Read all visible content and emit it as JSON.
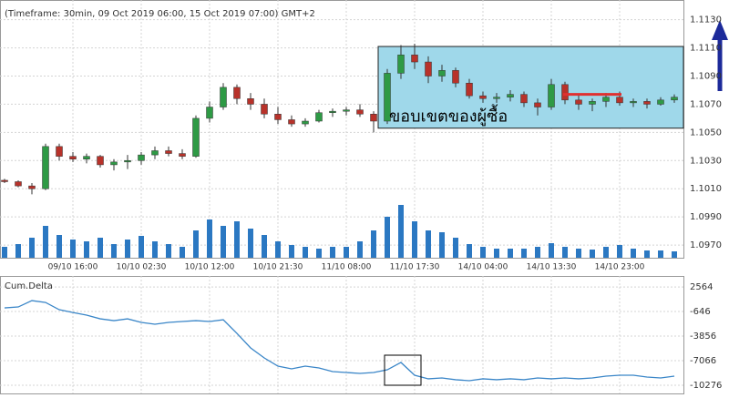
{
  "chart_data": {
    "type": "candlestick",
    "title": "(Timeframe: 30min, 09 Oct 2019 06:00, 15 Oct 2019 07:00) GMT+2",
    "categories": [
      null,
      null,
      null,
      null,
      null,
      "09/10 16:00",
      null,
      null,
      null,
      null,
      "10/10 02:30",
      null,
      null,
      null,
      null,
      "10/10 12:00",
      null,
      null,
      null,
      null,
      "10/10 21:30",
      null,
      null,
      null,
      null,
      "11/10 08:00",
      null,
      null,
      null,
      null,
      "11/10 17:30",
      null,
      null,
      null,
      null,
      "14/10 04:00",
      null,
      null,
      null,
      null,
      "14/10 13:30",
      null,
      null,
      null,
      null,
      "14/10 23:00",
      null,
      null,
      null,
      null
    ],
    "open": [
      1.1016,
      1.1015,
      1.1012,
      1.101,
      1.104,
      1.1033,
      1.1031,
      1.1033,
      1.1027,
      1.1029,
      1.103,
      1.1034,
      1.1037,
      1.1035,
      1.1033,
      1.106,
      1.1068,
      1.1082,
      1.1074,
      1.107,
      1.1063,
      1.1059,
      1.1056,
      1.1058,
      1.1064,
      1.1065,
      1.1066,
      1.1063,
      1.1058,
      1.1092,
      1.1105,
      1.11,
      1.109,
      1.1094,
      1.1085,
      1.1076,
      1.1074,
      1.1075,
      1.1077,
      1.1071,
      1.1068,
      1.1084,
      1.1073,
      1.107,
      1.1072,
      1.1075,
      1.1071,
      1.1072,
      1.107,
      1.1073
    ],
    "high": [
      1.1017,
      1.1016,
      1.1014,
      1.1042,
      1.1042,
      1.1036,
      1.1035,
      1.1034,
      1.1031,
      1.1034,
      1.1036,
      1.104,
      1.104,
      1.1038,
      1.1062,
      1.1072,
      1.1085,
      1.1084,
      1.1078,
      1.1074,
      1.1068,
      1.1062,
      1.106,
      1.1066,
      1.1067,
      1.1068,
      1.107,
      1.1065,
      1.1095,
      1.1112,
      1.1113,
      1.1104,
      1.1098,
      1.1096,
      1.1088,
      1.1079,
      1.1078,
      1.108,
      1.1079,
      1.1074,
      1.1088,
      1.1086,
      1.1077,
      1.1074,
      1.1078,
      1.1079,
      1.1074,
      1.1074,
      1.1075,
      1.1077
    ],
    "low": [
      1.1014,
      1.1011,
      1.1006,
      1.1009,
      1.103,
      1.1029,
      1.1028,
      1.1025,
      1.1023,
      1.1024,
      1.1027,
      1.1031,
      1.1033,
      1.1031,
      1.1032,
      1.1057,
      1.1066,
      1.107,
      1.1066,
      1.106,
      1.1056,
      1.1054,
      1.1054,
      1.1057,
      1.1061,
      1.1062,
      1.1061,
      1.105,
      1.1056,
      1.1088,
      1.1095,
      1.1085,
      1.1086,
      1.1082,
      1.1074,
      1.1071,
      1.1071,
      1.1072,
      1.1068,
      1.1062,
      1.1066,
      1.107,
      1.1066,
      1.1065,
      1.1068,
      1.1069,
      1.1068,
      1.1067,
      1.1069,
      1.1071
    ],
    "close": [
      1.1015,
      1.1012,
      1.101,
      1.104,
      1.1033,
      1.1031,
      1.1033,
      1.1027,
      1.1029,
      1.103,
      1.1034,
      1.1037,
      1.1035,
      1.1033,
      1.106,
      1.1068,
      1.1082,
      1.1074,
      1.107,
      1.1063,
      1.1059,
      1.1056,
      1.1058,
      1.1064,
      1.1065,
      1.1066,
      1.1063,
      1.1058,
      1.1092,
      1.1105,
      1.11,
      1.109,
      1.1094,
      1.1085,
      1.1076,
      1.1074,
      1.1075,
      1.1077,
      1.1071,
      1.1068,
      1.1084,
      1.1073,
      1.107,
      1.1072,
      1.1075,
      1.1071,
      1.1072,
      1.107,
      1.1073,
      1.1075
    ],
    "up_color": "#2e9a45",
    "down_color": "#b8322a",
    "ylim": [
      1.0961,
      1.1144
    ],
    "yticks": [
      {
        "value": 1.113,
        "label": "1.1130"
      },
      {
        "value": 1.111,
        "label": "1.1110"
      },
      {
        "value": 1.109,
        "label": "1.1090"
      },
      {
        "value": 1.107,
        "label": "1.1070"
      },
      {
        "value": 1.105,
        "label": "1.1050"
      },
      {
        "value": 1.103,
        "label": "1.1030"
      },
      {
        "value": 1.101,
        "label": "1.1010"
      },
      {
        "value": 1.099,
        "label": "1.0990"
      },
      {
        "value": 1.097,
        "label": "1.0970"
      }
    ],
    "grid": true,
    "volume": {
      "color": "#2b78c2",
      "vlim": [
        0,
        100
      ],
      "values": [
        12,
        15,
        22,
        35,
        25,
        20,
        18,
        22,
        15,
        20,
        24,
        18,
        15,
        12,
        30,
        42,
        35,
        40,
        32,
        25,
        18,
        14,
        12,
        10,
        12,
        12,
        18,
        30,
        45,
        58,
        40,
        30,
        28,
        22,
        15,
        12,
        10,
        10,
        10,
        12,
        16,
        12,
        10,
        9,
        12,
        14,
        10,
        8,
        8,
        7
      ]
    },
    "zone": {
      "label": "ขอบเขตของผู้ซื้อ",
      "color": "#9fd8ea",
      "ylim": [
        1.1053,
        1.1111
      ]
    },
    "level": {
      "value": 1.1077,
      "color": "#e03030"
    },
    "delta": {
      "name": "Cum.Delta",
      "color": "#3a86c8",
      "values": [
        -170,
        -50,
        780,
        540,
        -410,
        -770,
        -1120,
        -1600,
        -1840,
        -1600,
        -2070,
        -2310,
        -2070,
        -1950,
        -1840,
        -1950,
        -1720,
        -3500,
        -5400,
        -6710,
        -7780,
        -8140,
        -7780,
        -8020,
        -8490,
        -8610,
        -8730,
        -8610,
        -8260,
        -7300,
        -8970,
        -9440,
        -9330,
        -9560,
        -9680,
        -9440,
        -9560,
        -9440,
        -9560,
        -9330,
        -9440,
        -9330,
        -9440,
        -9330,
        -9090,
        -8970,
        -8970,
        -9210,
        -9330,
        -9090
      ],
      "ylim": [
        -11350,
        4000
      ],
      "yticks": [
        2564,
        -646,
        -3856,
        -7066,
        -10276
      ],
      "positive_tick_color": "#1a3fb0",
      "negative_tick_color": "#c02020"
    }
  }
}
